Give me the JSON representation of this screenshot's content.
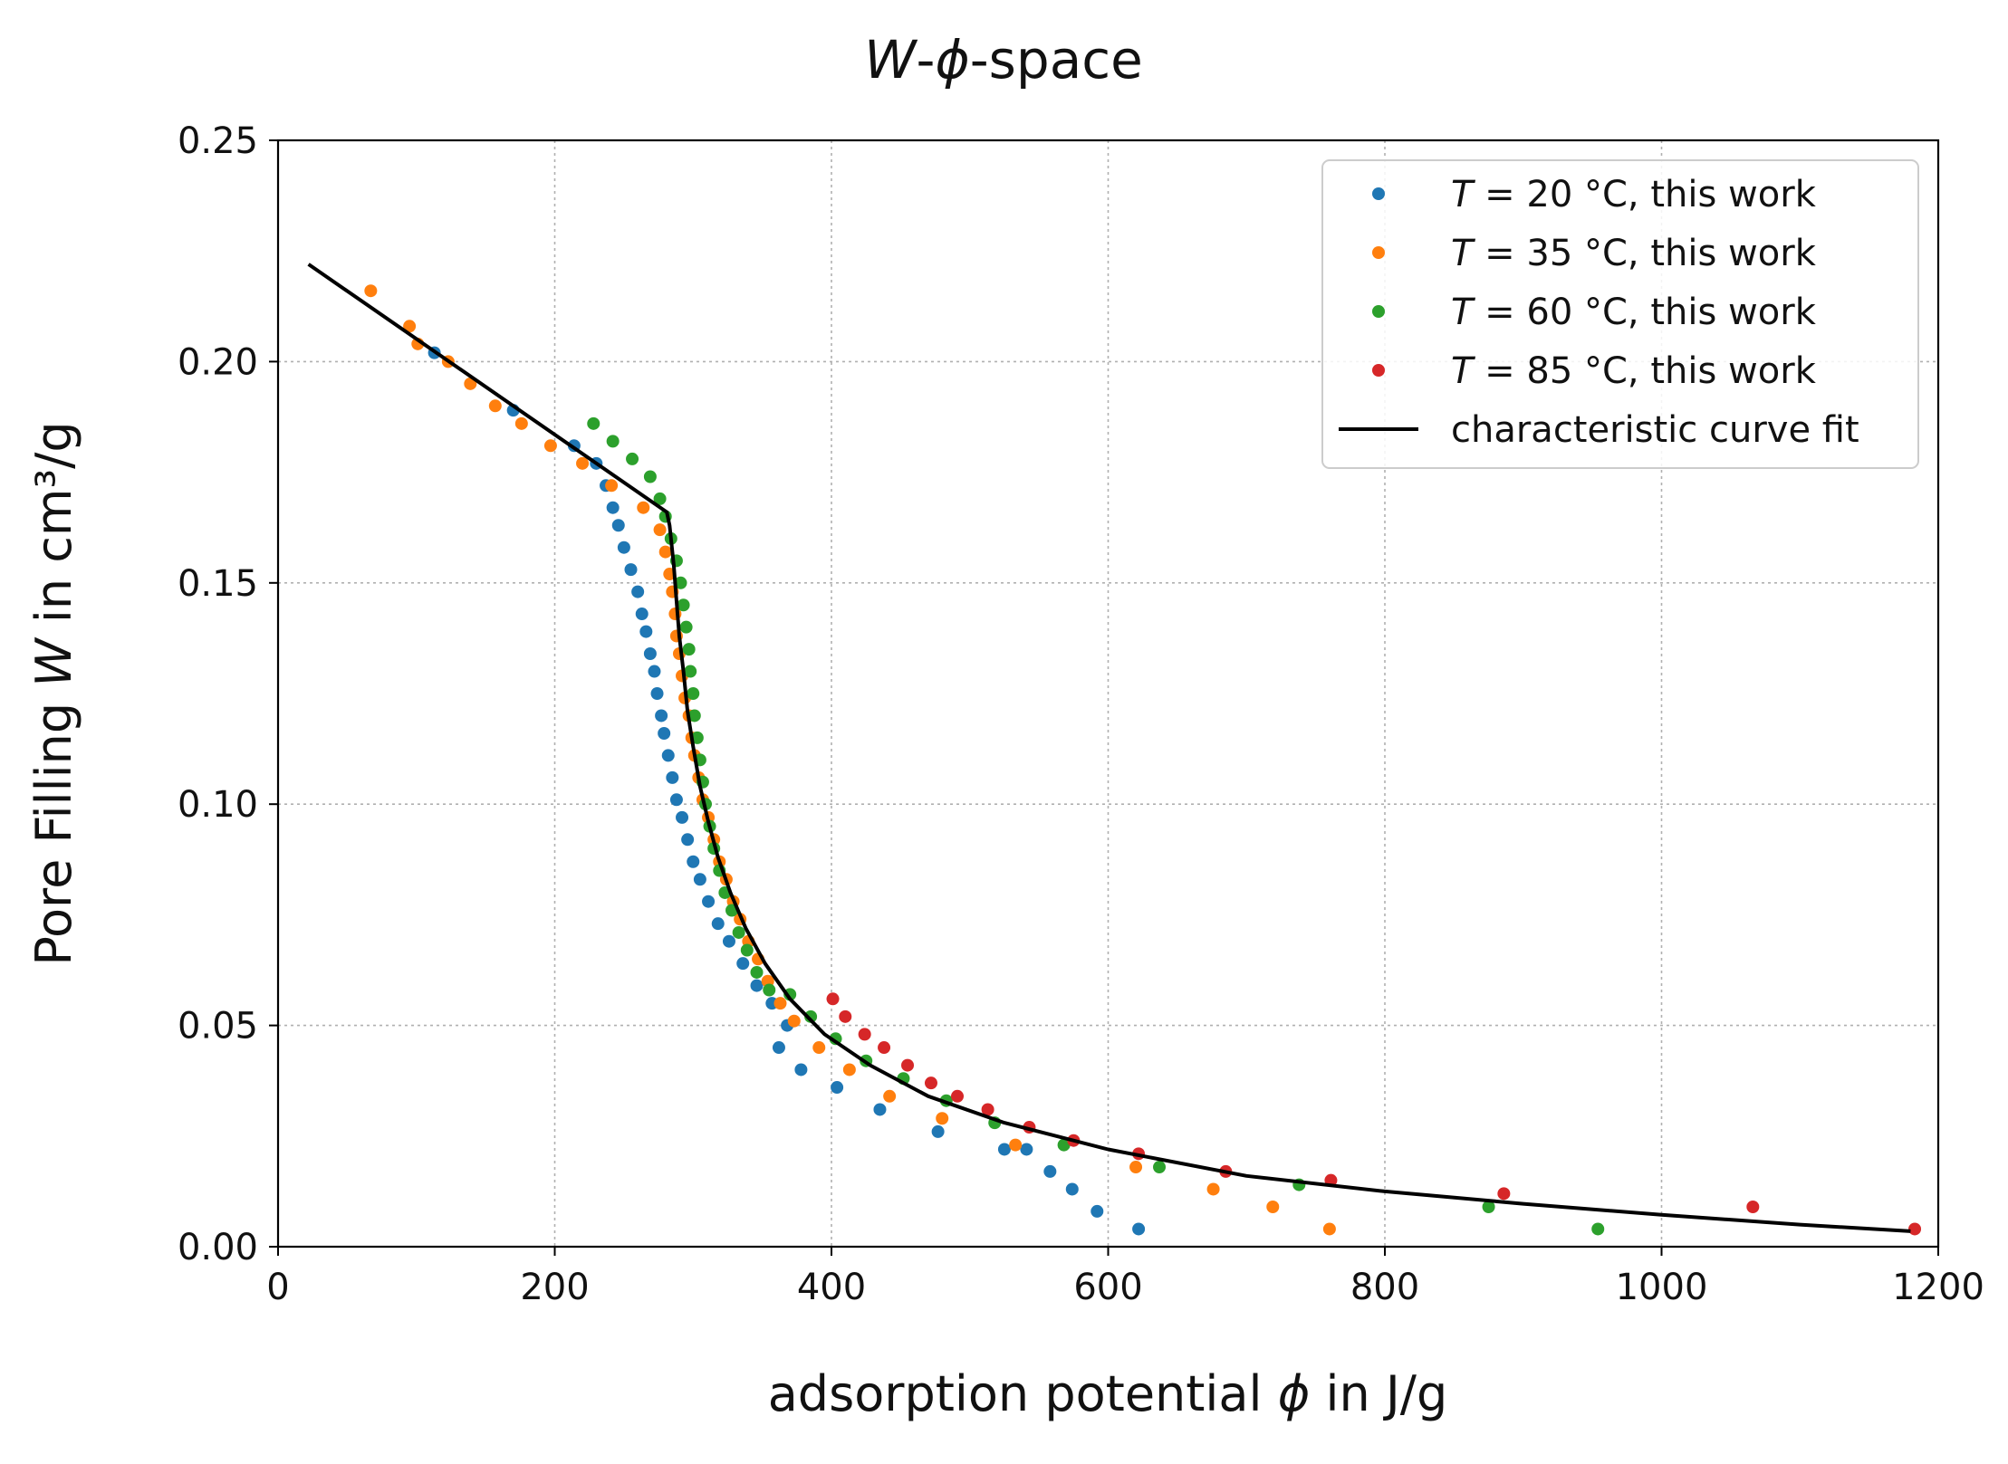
{
  "chart_data": {
    "type": "scatter",
    "title": "W-ϕ-space",
    "title_parts": {
      "var1": "W",
      "sep": "-",
      "var2": "ϕ",
      "rest": "-space"
    },
    "xlabel": "adsorption potential ϕ in J/g",
    "xlabel_parts": {
      "pre": "adsorption potential ",
      "var": "ϕ",
      "post": " in J/g"
    },
    "ylabel": "Pore Filling W in cm³/g",
    "ylabel_parts": {
      "pre": "Pore Filling ",
      "var": "W",
      "post": " in cm³/g"
    },
    "xlim": [
      0,
      1200
    ],
    "ylim": [
      0,
      0.25
    ],
    "xticks": [
      0,
      200,
      400,
      600,
      800,
      1000,
      1200
    ],
    "xtick_labels": [
      "0",
      "200",
      "400",
      "600",
      "800",
      "1000",
      "1200"
    ],
    "yticks": [
      0,
      0.05,
      0.1,
      0.15,
      0.2,
      0.25
    ],
    "ytick_labels": [
      "0.00",
      "0.05",
      "0.10",
      "0.15",
      "0.20",
      "0.25"
    ],
    "grid": true,
    "legend_position": "top-right",
    "series": [
      {
        "name": "T = 20 °C, this work",
        "legend_var": "T",
        "legend_rest": " = 20 °C, this work",
        "color": "#1f77b4",
        "points": [
          [
            113,
            0.202
          ],
          [
            170,
            0.189
          ],
          [
            214,
            0.181
          ],
          [
            230,
            0.177
          ],
          [
            237,
            0.172
          ],
          [
            242,
            0.167
          ],
          [
            246,
            0.163
          ],
          [
            250,
            0.158
          ],
          [
            255,
            0.153
          ],
          [
            260,
            0.148
          ],
          [
            263,
            0.143
          ],
          [
            266,
            0.139
          ],
          [
            269,
            0.134
          ],
          [
            272,
            0.13
          ],
          [
            274,
            0.125
          ],
          [
            277,
            0.12
          ],
          [
            279,
            0.116
          ],
          [
            282,
            0.111
          ],
          [
            285,
            0.106
          ],
          [
            288,
            0.101
          ],
          [
            292,
            0.097
          ],
          [
            296,
            0.092
          ],
          [
            300,
            0.087
          ],
          [
            305,
            0.083
          ],
          [
            311,
            0.078
          ],
          [
            318,
            0.073
          ],
          [
            326,
            0.069
          ],
          [
            336,
            0.064
          ],
          [
            346,
            0.059
          ],
          [
            357,
            0.055
          ],
          [
            368,
            0.05
          ],
          [
            362,
            0.045
          ],
          [
            378,
            0.04
          ],
          [
            404,
            0.036
          ],
          [
            435,
            0.031
          ],
          [
            477,
            0.026
          ],
          [
            525,
            0.022
          ],
          [
            541,
            0.022
          ],
          [
            558,
            0.017
          ],
          [
            574,
            0.013
          ],
          [
            592,
            0.008
          ],
          [
            622,
            0.004
          ]
        ]
      },
      {
        "name": "T = 35 °C, this work",
        "legend_var": "T",
        "legend_rest": " = 35 °C, this work",
        "color": "#ff7f0e",
        "points": [
          [
            67,
            0.216
          ],
          [
            95,
            0.208
          ],
          [
            101,
            0.204
          ],
          [
            123,
            0.2
          ],
          [
            139,
            0.195
          ],
          [
            157,
            0.19
          ],
          [
            176,
            0.186
          ],
          [
            197,
            0.181
          ],
          [
            220,
            0.177
          ],
          [
            241,
            0.172
          ],
          [
            264,
            0.167
          ],
          [
            276,
            0.162
          ],
          [
            280,
            0.157
          ],
          [
            283,
            0.152
          ],
          [
            285,
            0.148
          ],
          [
            287,
            0.143
          ],
          [
            288,
            0.138
          ],
          [
            290,
            0.134
          ],
          [
            292,
            0.129
          ],
          [
            294,
            0.124
          ],
          [
            297,
            0.12
          ],
          [
            299,
            0.115
          ],
          [
            301,
            0.111
          ],
          [
            304,
            0.106
          ],
          [
            307,
            0.101
          ],
          [
            311,
            0.097
          ],
          [
            315,
            0.092
          ],
          [
            319,
            0.087
          ],
          [
            324,
            0.083
          ],
          [
            329,
            0.078
          ],
          [
            334,
            0.074
          ],
          [
            340,
            0.069
          ],
          [
            347,
            0.065
          ],
          [
            354,
            0.06
          ],
          [
            363,
            0.055
          ],
          [
            373,
            0.051
          ],
          [
            391,
            0.045
          ],
          [
            413,
            0.04
          ],
          [
            442,
            0.034
          ],
          [
            480,
            0.029
          ],
          [
            533,
            0.023
          ],
          [
            620,
            0.018
          ],
          [
            676,
            0.013
          ],
          [
            719,
            0.009
          ],
          [
            760,
            0.004
          ]
        ]
      },
      {
        "name": "T = 60 °C, this work",
        "legend_var": "T",
        "legend_rest": " = 60 °C, this work",
        "color": "#2ca02c",
        "points": [
          [
            228,
            0.186
          ],
          [
            242,
            0.182
          ],
          [
            256,
            0.178
          ],
          [
            269,
            0.174
          ],
          [
            276,
            0.169
          ],
          [
            280,
            0.165
          ],
          [
            284,
            0.16
          ],
          [
            288,
            0.155
          ],
          [
            291,
            0.15
          ],
          [
            293,
            0.145
          ],
          [
            295,
            0.14
          ],
          [
            297,
            0.135
          ],
          [
            298,
            0.13
          ],
          [
            300,
            0.125
          ],
          [
            301,
            0.12
          ],
          [
            303,
            0.115
          ],
          [
            305,
            0.11
          ],
          [
            307,
            0.105
          ],
          [
            309,
            0.1
          ],
          [
            312,
            0.095
          ],
          [
            315,
            0.09
          ],
          [
            319,
            0.085
          ],
          [
            323,
            0.08
          ],
          [
            328,
            0.076
          ],
          [
            333,
            0.071
          ],
          [
            339,
            0.067
          ],
          [
            346,
            0.062
          ],
          [
            355,
            0.058
          ],
          [
            370,
            0.057
          ],
          [
            385,
            0.052
          ],
          [
            403,
            0.047
          ],
          [
            425,
            0.042
          ],
          [
            452,
            0.038
          ],
          [
            483,
            0.033
          ],
          [
            518,
            0.028
          ],
          [
            568,
            0.023
          ],
          [
            637,
            0.018
          ],
          [
            738,
            0.014
          ],
          [
            875,
            0.009
          ],
          [
            954,
            0.004
          ]
        ]
      },
      {
        "name": "T = 85 °C, this work",
        "legend_var": "T",
        "legend_rest": " = 85 °C, this work",
        "color": "#d62728",
        "points": [
          [
            401,
            0.056
          ],
          [
            410,
            0.052
          ],
          [
            424,
            0.048
          ],
          [
            438,
            0.045
          ],
          [
            455,
            0.041
          ],
          [
            472,
            0.037
          ],
          [
            491,
            0.034
          ],
          [
            513,
            0.031
          ],
          [
            543,
            0.027
          ],
          [
            575,
            0.024
          ],
          [
            622,
            0.021
          ],
          [
            685,
            0.017
          ],
          [
            761,
            0.015
          ],
          [
            886,
            0.012
          ],
          [
            1066,
            0.009
          ],
          [
            1183,
            0.004
          ]
        ]
      }
    ],
    "fit": {
      "name": "characteristic curve fit",
      "color": "#000000",
      "points": [
        [
          22,
          0.222
        ],
        [
          281,
          0.166
        ],
        [
          283,
          0.163
        ],
        [
          286,
          0.154
        ],
        [
          288,
          0.146
        ],
        [
          290,
          0.138
        ],
        [
          293,
          0.13
        ],
        [
          296,
          0.121
        ],
        [
          300,
          0.113
        ],
        [
          305,
          0.104
        ],
        [
          311,
          0.096
        ],
        [
          318,
          0.088
        ],
        [
          327,
          0.08
        ],
        [
          338,
          0.072
        ],
        [
          352,
          0.064
        ],
        [
          370,
          0.056
        ],
        [
          395,
          0.048
        ],
        [
          428,
          0.041
        ],
        [
          470,
          0.034
        ],
        [
          525,
          0.028
        ],
        [
          600,
          0.022
        ],
        [
          700,
          0.016
        ],
        [
          800,
          0.0125
        ],
        [
          900,
          0.0097
        ],
        [
          1000,
          0.0072
        ],
        [
          1100,
          0.005
        ],
        [
          1180,
          0.0035
        ]
      ]
    }
  }
}
